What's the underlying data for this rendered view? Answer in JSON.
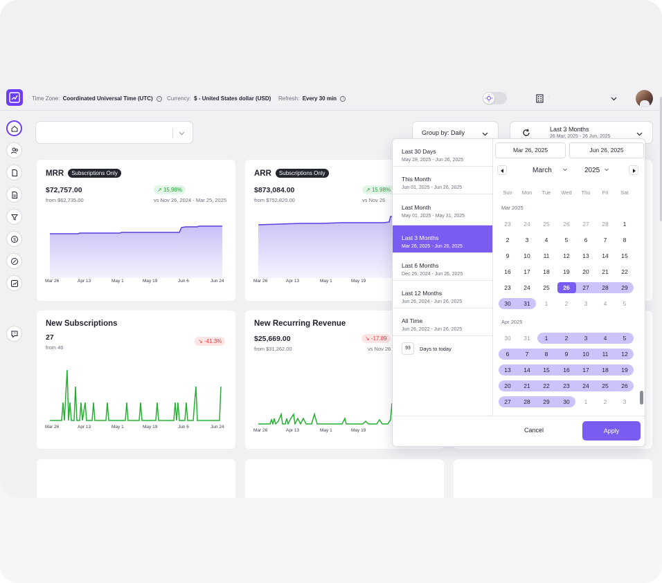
{
  "topbar": {
    "timezone_label": "Time Zone:",
    "timezone_value": "Coordinated Universal Time (UTC)",
    "currency_label": "Currency:",
    "currency_value": "$ - United States dollar (USD)",
    "refresh_label": "Refresh:",
    "refresh_value": "Every 30 min"
  },
  "filters": {
    "group_by": "Group by: Daily",
    "range_title": "Last 3 Months",
    "range_dates": "26 Mar, 2025 - 26 Jun, 2025"
  },
  "cards": {
    "mrr": {
      "title": "MRR",
      "badge": "Subscriptions Only",
      "value": "$72,757.00",
      "from": "from $62,735.00",
      "pct": "15.98%",
      "vs": "vs Nov 26, 2024 - Mar 25, 2025",
      "line_color": "#5b3fe0"
    },
    "arr": {
      "title": "ARR",
      "badge": "Subscriptions Only",
      "value": "$873,084.00",
      "from": "from $752,820.00",
      "pct": "15.98%",
      "vs": "vs Nov 26"
    },
    "new_subs": {
      "title": "New Subscriptions",
      "value": "27",
      "from": "from 46",
      "pct": "-41.3%",
      "line_color": "#22b02e"
    },
    "nrr": {
      "title": "New Recurring Revenue",
      "value": "$25,669.00",
      "from": "from $31,262.00",
      "pct": "-17.89",
      "vs": "vs Nov 26"
    }
  },
  "axis_labels": {
    "left": [
      "Mar 26",
      "Apr 13",
      "May 1",
      "May 19",
      "Jun 6",
      "Jun 24"
    ],
    "mid": [
      "Mar 26",
      "Apr 13",
      "May 1",
      "May 19"
    ]
  },
  "picker": {
    "presets": [
      {
        "label": "Last 30 Days",
        "range": "May 28, 2025 - Jun 26, 2025"
      },
      {
        "label": "This Month",
        "range": "Jun 01, 2025 - Jun 26, 2025"
      },
      {
        "label": "Last Month",
        "range": "May 01, 2025 - May 31, 2025"
      },
      {
        "label": "Last 3 Months",
        "range": "Mar 26, 2025 - Jun 26, 2025"
      },
      {
        "label": "Last 6 Months",
        "range": "Dec 26, 2024 - Jun 26, 2025"
      },
      {
        "label": "Last 12 Months",
        "range": "Jun 26, 2024 - Jun 26, 2025"
      },
      {
        "label": "All Time",
        "range": "Jun 26, 2022 - Jun 26, 2025"
      }
    ],
    "days_value": "93",
    "days_label": "Days to today",
    "start_input": "Mar 26, 2025",
    "end_input": "Jun 26, 2025",
    "month": "March",
    "year": "2025",
    "weekdays": [
      "Sun",
      "Mon",
      "Tue",
      "Wed",
      "Thu",
      "Fri",
      "Sat"
    ],
    "month1_label": "Mar 2025",
    "month2_label": "Apr 2025",
    "cancel": "Cancel",
    "apply": "Apply",
    "accent": "#7b5cf3"
  }
}
